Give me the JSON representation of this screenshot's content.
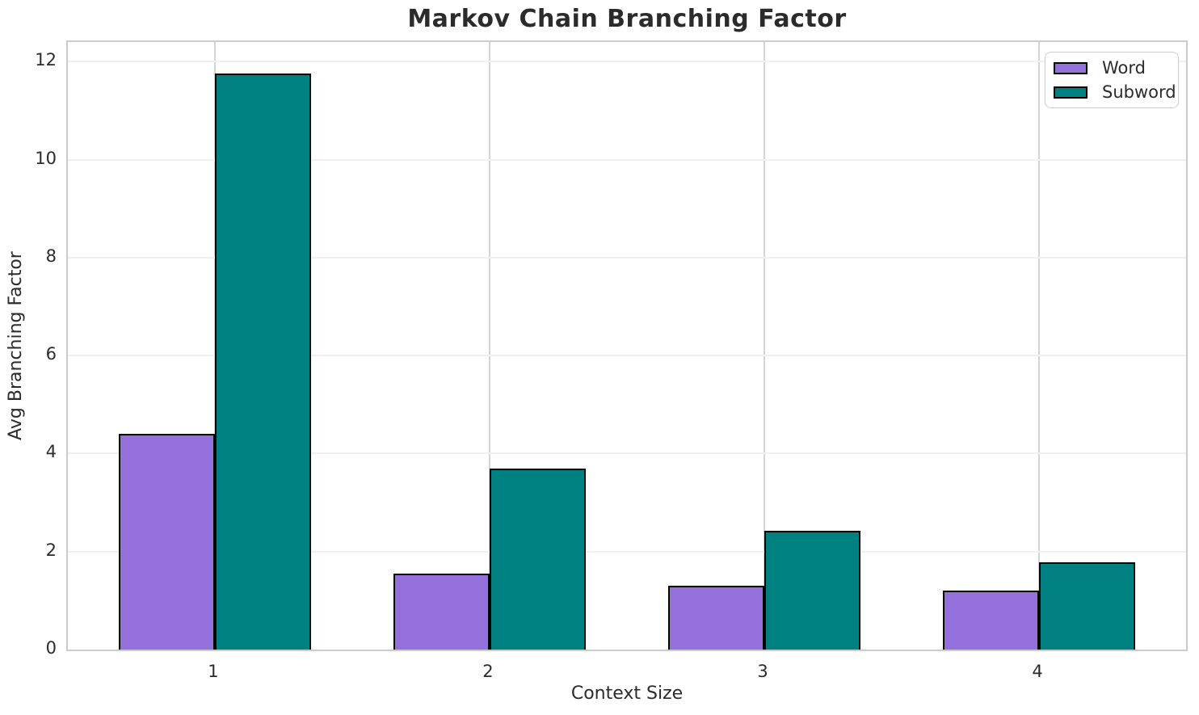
{
  "chart_data": {
    "type": "bar",
    "title": "Markov Chain Branching Factor",
    "xlabel": "Context Size",
    "ylabel": "Avg Branching Factor",
    "categories": [
      "1",
      "2",
      "3",
      "4"
    ],
    "series": [
      {
        "name": "Word",
        "color": "#9370DB",
        "values": [
          4.4,
          1.55,
          1.3,
          1.2
        ]
      },
      {
        "name": "Subword",
        "color": "#008080",
        "values": [
          11.75,
          3.7,
          2.43,
          1.78
        ]
      }
    ],
    "ylim": [
      0,
      12.4
    ],
    "yticks": [
      0,
      2,
      4,
      6,
      8,
      10,
      12
    ],
    "grid": true,
    "legend_position": "upper right",
    "bar_width": 0.35,
    "bar_edge_color": "#000000"
  },
  "styles": {
    "grid_x_color": "#d4d4d4",
    "grid_y_color": "#f0f0f0",
    "spine_color": "#cccccc",
    "text_color": "#2b2b2b",
    "background": "#ffffff"
  }
}
